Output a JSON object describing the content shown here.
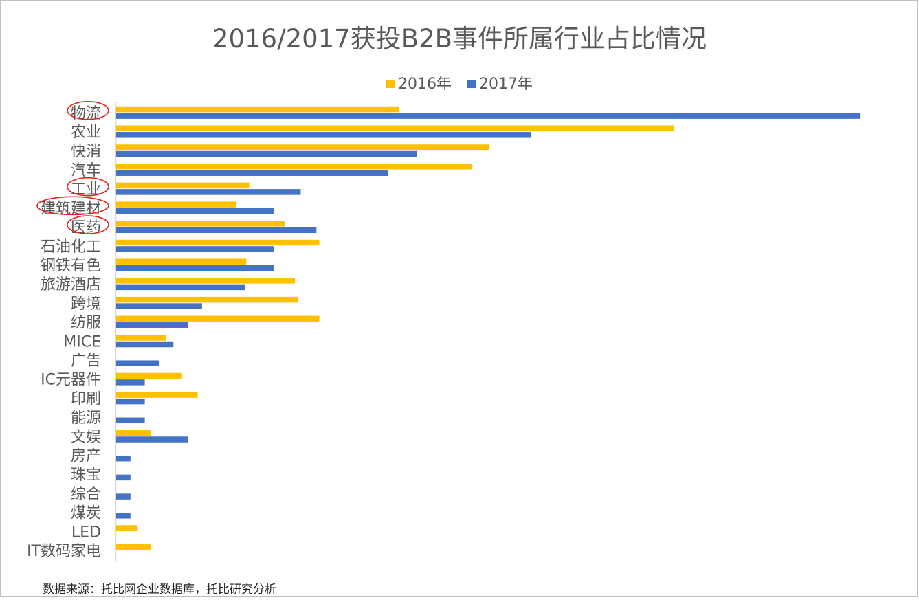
{
  "title": "2016/2017获投B2B事件所属行业占比情况",
  "source": "数据来源：托比网企业数据库，托比研究分析",
  "colors": {
    "s2016": "#FFC000",
    "s2017": "#4472C4",
    "highlight": "#E8211F",
    "axis": "#D9D9D9",
    "text": "#595959"
  },
  "chart_data": {
    "type": "bar",
    "orientation": "horizontal",
    "categories": [
      "物流",
      "农业",
      "快消",
      "汽车",
      "工业",
      "建筑建材",
      "医药",
      "石油化工",
      "钢铁有色",
      "旅游酒店",
      "跨境",
      "纺服",
      "MICE",
      "广告",
      "IC元器件",
      "印刷",
      "能源",
      "文娱",
      "房产",
      "珠宝",
      "综合",
      "煤炭",
      "LED",
      "IT数码家电"
    ],
    "series": [
      {
        "name": "2016年",
        "values": [
          19.8,
          39.0,
          26.1,
          24.9,
          9.3,
          8.4,
          11.8,
          14.2,
          9.1,
          12.5,
          12.7,
          14.2,
          3.5,
          0,
          4.6,
          5.7,
          0,
          2.4,
          0,
          0,
          0,
          0,
          1.5,
          2.4
        ]
      },
      {
        "name": "2017年",
        "values": [
          52.0,
          29.0,
          21.0,
          19.0,
          12.9,
          11.0,
          14.0,
          11.0,
          11.0,
          9.0,
          6.0,
          5.0,
          4.0,
          3.0,
          2.0,
          2.0,
          2.0,
          5.0,
          1.0,
          1.0,
          1.0,
          1.0,
          0,
          0
        ]
      }
    ],
    "xlim": [
      0,
      53
    ],
    "xaxis_visible": false,
    "grid": false,
    "legend_position": "top",
    "highlighted_categories": [
      "物流",
      "工业",
      "建筑建材",
      "医药"
    ]
  }
}
